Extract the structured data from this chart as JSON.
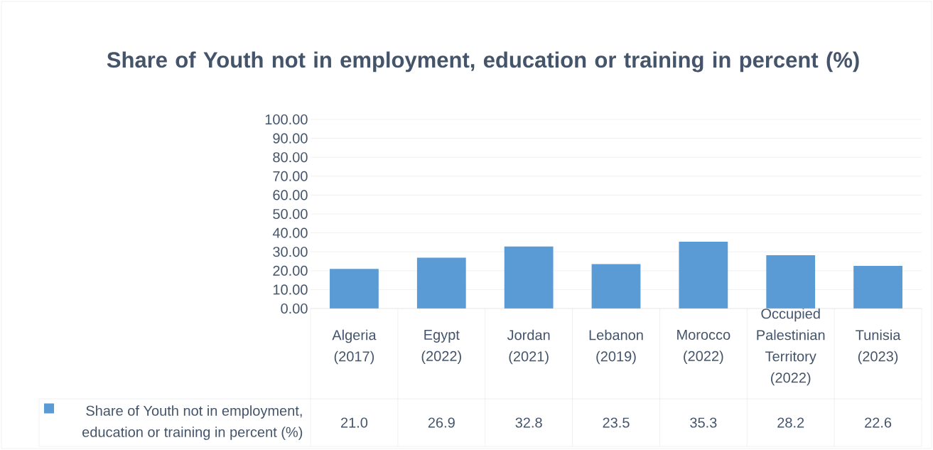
{
  "chart_data": {
    "type": "bar",
    "title": "Share of Youth not in employment, education or training in percent (%)",
    "categories": [
      "Algeria (2017)",
      "Egypt (2022)",
      "Jordan (2021)",
      "Lebanon (2019)",
      "Morocco (2022)",
      "Occupied Palestinian Territory (2022)",
      "Tunisia (2023)"
    ],
    "series": [
      {
        "name": "Share of Youth not in employment, education or training in percent (%)",
        "color": "#5b9bd5",
        "values": [
          21.0,
          26.9,
          32.8,
          23.5,
          35.3,
          28.2,
          22.6
        ],
        "value_labels": [
          "21.0",
          "26.9",
          "32.8",
          "23.5",
          "35.3",
          "28.2",
          "22.6"
        ]
      }
    ],
    "ylim": [
      0,
      100
    ],
    "yticks": [
      {
        "value": 0,
        "label": "0.00"
      },
      {
        "value": 10,
        "label": "10.00"
      },
      {
        "value": 20,
        "label": "20.00"
      },
      {
        "value": 30,
        "label": "30.00"
      },
      {
        "value": 40,
        "label": "40.00"
      },
      {
        "value": 50,
        "label": "50.00"
      },
      {
        "value": 60,
        "label": "60.00"
      },
      {
        "value": 70,
        "label": "70.00"
      },
      {
        "value": 80,
        "label": "80.00"
      },
      {
        "value": 90,
        "label": "90.00"
      },
      {
        "value": 100,
        "label": "100.00"
      }
    ],
    "grid": "y",
    "legend": "bottom"
  }
}
